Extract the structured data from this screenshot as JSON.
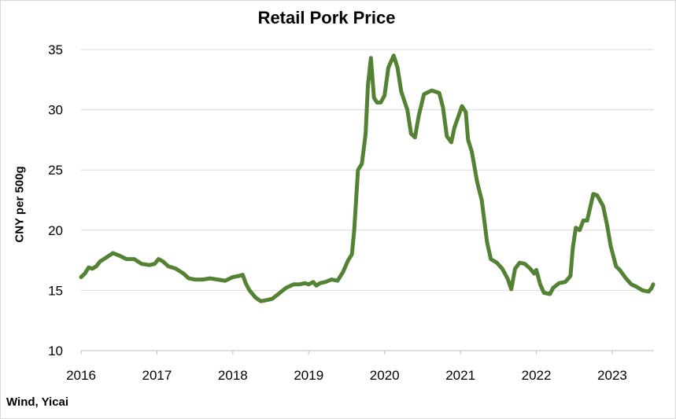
{
  "chart_data": {
    "type": "line",
    "title": "Retail Pork Price",
    "ylabel": "CNY per 500g",
    "xlabel": "",
    "source": "Wind, Yicai",
    "ylim": [
      10,
      35
    ],
    "yticks": [
      10,
      15,
      20,
      25,
      30,
      35
    ],
    "xlim": [
      2016.0,
      2023.55
    ],
    "xticks": [
      2016,
      2017,
      2018,
      2019,
      2020,
      2021,
      2022,
      2023
    ],
    "grid": true,
    "line_color": "#548235",
    "series": [
      {
        "values": [
          [
            2016.0,
            16.1
          ],
          [
            2016.05,
            16.4
          ],
          [
            2016.1,
            16.9
          ],
          [
            2016.15,
            16.8
          ],
          [
            2016.2,
            17.0
          ],
          [
            2016.25,
            17.4
          ],
          [
            2016.3,
            17.6
          ],
          [
            2016.35,
            17.8
          ],
          [
            2016.42,
            18.1
          ],
          [
            2016.5,
            17.9
          ],
          [
            2016.6,
            17.6
          ],
          [
            2016.7,
            17.6
          ],
          [
            2016.8,
            17.2
          ],
          [
            2016.9,
            17.1
          ],
          [
            2016.97,
            17.2
          ],
          [
            2017.02,
            17.6
          ],
          [
            2017.08,
            17.4
          ],
          [
            2017.15,
            17.0
          ],
          [
            2017.25,
            16.8
          ],
          [
            2017.35,
            16.4
          ],
          [
            2017.42,
            16.0
          ],
          [
            2017.5,
            15.9
          ],
          [
            2017.6,
            15.9
          ],
          [
            2017.7,
            16.0
          ],
          [
            2017.8,
            15.9
          ],
          [
            2017.9,
            15.8
          ],
          [
            2018.0,
            16.1
          ],
          [
            2018.08,
            16.2
          ],
          [
            2018.13,
            16.3
          ],
          [
            2018.17,
            15.6
          ],
          [
            2018.22,
            15.0
          ],
          [
            2018.3,
            14.4
          ],
          [
            2018.37,
            14.1
          ],
          [
            2018.45,
            14.2
          ],
          [
            2018.52,
            14.3
          ],
          [
            2018.6,
            14.7
          ],
          [
            2018.7,
            15.2
          ],
          [
            2018.8,
            15.5
          ],
          [
            2018.88,
            15.5
          ],
          [
            2018.95,
            15.6
          ],
          [
            2019.0,
            15.5
          ],
          [
            2019.06,
            15.7
          ],
          [
            2019.1,
            15.4
          ],
          [
            2019.15,
            15.6
          ],
          [
            2019.22,
            15.7
          ],
          [
            2019.3,
            15.9
          ],
          [
            2019.38,
            15.8
          ],
          [
            2019.45,
            16.5
          ],
          [
            2019.52,
            17.5
          ],
          [
            2019.57,
            18.0
          ],
          [
            2019.6,
            20.0
          ],
          [
            2019.65,
            25.0
          ],
          [
            2019.7,
            25.5
          ],
          [
            2019.75,
            28.0
          ],
          [
            2019.78,
            32.0
          ],
          [
            2019.82,
            34.3
          ],
          [
            2019.86,
            31.0
          ],
          [
            2019.9,
            30.6
          ],
          [
            2019.95,
            30.6
          ],
          [
            2020.0,
            31.2
          ],
          [
            2020.05,
            33.5
          ],
          [
            2020.12,
            34.5
          ],
          [
            2020.17,
            33.5
          ],
          [
            2020.22,
            31.5
          ],
          [
            2020.3,
            30.0
          ],
          [
            2020.35,
            28.0
          ],
          [
            2020.4,
            27.7
          ],
          [
            2020.45,
            29.5
          ],
          [
            2020.52,
            31.3
          ],
          [
            2020.62,
            31.6
          ],
          [
            2020.72,
            31.4
          ],
          [
            2020.77,
            30.2
          ],
          [
            2020.82,
            27.8
          ],
          [
            2020.88,
            27.3
          ],
          [
            2020.92,
            28.5
          ],
          [
            2020.97,
            29.4
          ],
          [
            2021.02,
            30.3
          ],
          [
            2021.07,
            29.8
          ],
          [
            2021.1,
            27.5
          ],
          [
            2021.15,
            26.5
          ],
          [
            2021.22,
            24.0
          ],
          [
            2021.28,
            22.5
          ],
          [
            2021.35,
            19.0
          ],
          [
            2021.4,
            17.6
          ],
          [
            2021.48,
            17.3
          ],
          [
            2021.55,
            16.8
          ],
          [
            2021.62,
            16.0
          ],
          [
            2021.67,
            15.1
          ],
          [
            2021.72,
            16.8
          ],
          [
            2021.78,
            17.3
          ],
          [
            2021.85,
            17.2
          ],
          [
            2021.92,
            16.8
          ],
          [
            2021.97,
            16.4
          ],
          [
            2022.0,
            16.7
          ],
          [
            2022.05,
            15.5
          ],
          [
            2022.1,
            14.8
          ],
          [
            2022.18,
            14.7
          ],
          [
            2022.22,
            15.2
          ],
          [
            2022.3,
            15.6
          ],
          [
            2022.38,
            15.7
          ],
          [
            2022.45,
            16.2
          ],
          [
            2022.48,
            18.5
          ],
          [
            2022.52,
            20.2
          ],
          [
            2022.57,
            20.0
          ],
          [
            2022.62,
            20.8
          ],
          [
            2022.67,
            20.8
          ],
          [
            2022.75,
            23.0
          ],
          [
            2022.8,
            22.9
          ],
          [
            2022.88,
            22.0
          ],
          [
            2022.93,
            20.5
          ],
          [
            2022.98,
            18.7
          ],
          [
            2023.05,
            17.0
          ],
          [
            2023.1,
            16.7
          ],
          [
            2023.18,
            16.0
          ],
          [
            2023.25,
            15.5
          ],
          [
            2023.32,
            15.3
          ],
          [
            2023.4,
            15.0
          ],
          [
            2023.48,
            14.9
          ],
          [
            2023.52,
            15.2
          ],
          [
            2023.54,
            15.5
          ]
        ]
      }
    ]
  }
}
